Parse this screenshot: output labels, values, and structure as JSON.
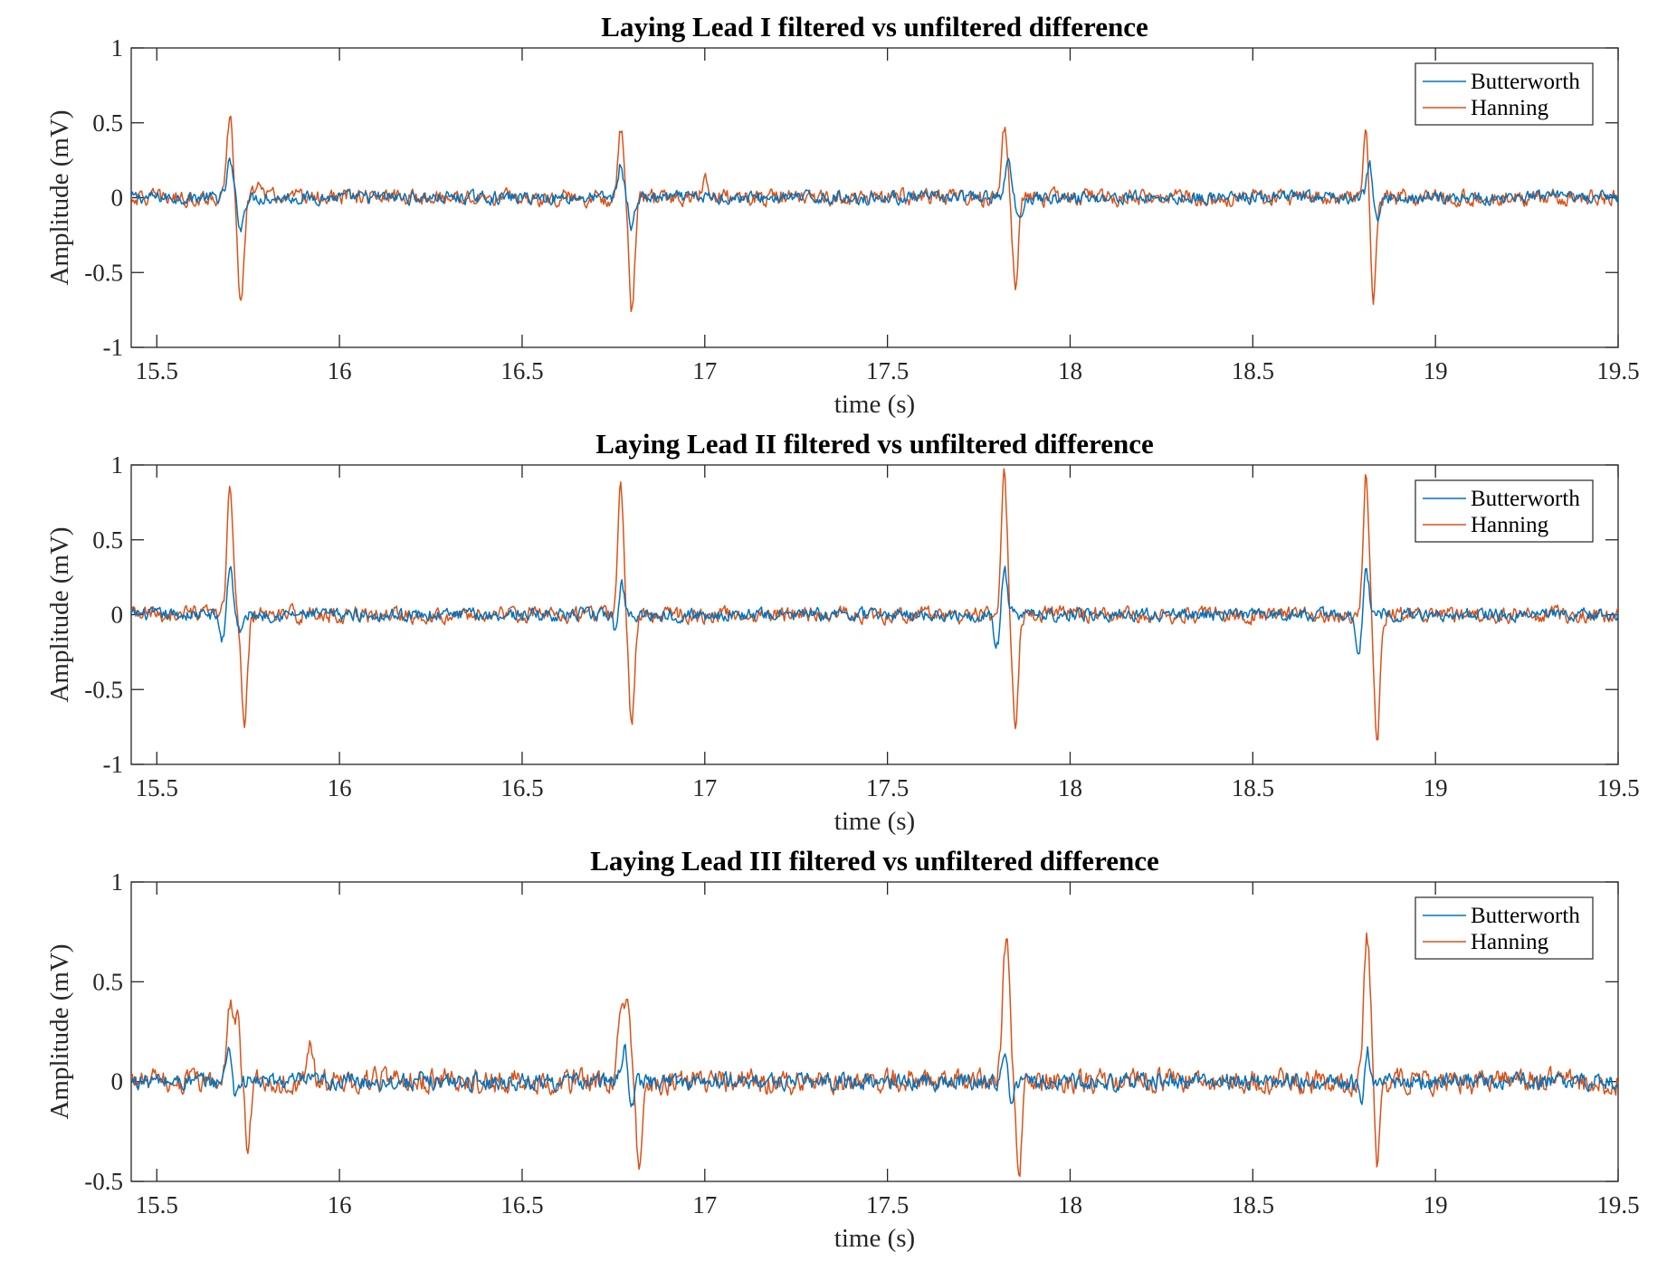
{
  "colors": {
    "butterworth": "#0072BD",
    "hanning": "#D95319",
    "axis": "#262626"
  },
  "chart_data": [
    {
      "type": "line",
      "title": "Laying Lead I filtered vs unfiltered difference",
      "xlabel": "time (s)",
      "ylabel": "Amplitude (mV)",
      "xlim": [
        15.43,
        19.5
      ],
      "ylim": [
        -1,
        1
      ],
      "xticks": [
        15.5,
        16,
        16.5,
        17,
        17.5,
        18,
        18.5,
        19,
        19.5
      ],
      "xtick_labels": [
        "15.5",
        "16",
        "16.5",
        "17",
        "17.5",
        "18",
        "18.5",
        "19",
        "19.5"
      ],
      "yticks": [
        -1,
        -0.5,
        0,
        0.5,
        1
      ],
      "ytick_labels": [
        "-1",
        "-0.5",
        "0",
        "0.5",
        "1"
      ],
      "grid": false,
      "legend_position": "top-right",
      "noise_amplitude": {
        "butterworth": 0.035,
        "hanning": 0.045
      },
      "series": [
        {
          "name": "Butterworth",
          "color": "#0072BD",
          "peaks": [
            {
              "t": 15.7,
              "v": 0.24
            },
            {
              "t": 15.73,
              "v": -0.2
            },
            {
              "t": 16.77,
              "v": 0.22
            },
            {
              "t": 16.8,
              "v": -0.2
            },
            {
              "t": 17.83,
              "v": 0.24
            },
            {
              "t": 17.86,
              "v": -0.15
            },
            {
              "t": 18.82,
              "v": 0.22
            },
            {
              "t": 18.84,
              "v": -0.18
            }
          ]
        },
        {
          "name": "Hanning",
          "color": "#D95319",
          "peaks": [
            {
              "t": 15.7,
              "v": 0.54
            },
            {
              "t": 15.73,
              "v": -0.73
            },
            {
              "t": 15.78,
              "v": 0.15
            },
            {
              "t": 16.77,
              "v": 0.46
            },
            {
              "t": 16.8,
              "v": -0.77
            },
            {
              "t": 17.0,
              "v": 0.15
            },
            {
              "t": 17.82,
              "v": 0.46
            },
            {
              "t": 17.85,
              "v": -0.58
            },
            {
              "t": 18.81,
              "v": 0.46
            },
            {
              "t": 18.83,
              "v": -0.68
            }
          ]
        }
      ]
    },
    {
      "type": "line",
      "title": "Laying Lead II filtered vs unfiltered difference",
      "xlabel": "time (s)",
      "ylabel": "Amplitude (mV)",
      "xlim": [
        15.43,
        19.5
      ],
      "ylim": [
        -1,
        1
      ],
      "xticks": [
        15.5,
        16,
        16.5,
        17,
        17.5,
        18,
        18.5,
        19,
        19.5
      ],
      "xtick_labels": [
        "15.5",
        "16",
        "16.5",
        "17",
        "17.5",
        "18",
        "18.5",
        "19",
        "19.5"
      ],
      "yticks": [
        -1,
        -0.5,
        0,
        0.5,
        1
      ],
      "ytick_labels": [
        "-1",
        "-0.5",
        "0",
        "0.5",
        "1"
      ],
      "grid": false,
      "legend_position": "top-right",
      "noise_amplitude": {
        "butterworth": 0.035,
        "hanning": 0.045
      },
      "series": [
        {
          "name": "Butterworth",
          "color": "#0072BD",
          "peaks": [
            {
              "t": 15.7,
              "v": 0.33
            },
            {
              "t": 15.68,
              "v": -0.18
            },
            {
              "t": 15.73,
              "v": -0.12
            },
            {
              "t": 16.77,
              "v": 0.28
            },
            {
              "t": 16.76,
              "v": -0.18
            },
            {
              "t": 17.82,
              "v": 0.3
            },
            {
              "t": 17.8,
              "v": -0.22
            },
            {
              "t": 18.81,
              "v": 0.3
            },
            {
              "t": 18.79,
              "v": -0.25
            }
          ]
        },
        {
          "name": "Hanning",
          "color": "#D95319",
          "peaks": [
            {
              "t": 15.7,
              "v": 0.88
            },
            {
              "t": 15.74,
              "v": -0.75
            },
            {
              "t": 16.77,
              "v": 0.85
            },
            {
              "t": 16.8,
              "v": -0.72
            },
            {
              "t": 17.82,
              "v": 0.92
            },
            {
              "t": 17.85,
              "v": -0.75
            },
            {
              "t": 18.81,
              "v": 0.94
            },
            {
              "t": 18.84,
              "v": -0.83
            }
          ]
        }
      ]
    },
    {
      "type": "line",
      "title": "Laying Lead III filtered vs unfiltered difference",
      "xlabel": "time (s)",
      "ylabel": "Amplitude (mV)",
      "xlim": [
        15.43,
        19.5
      ],
      "ylim": [
        -0.5,
        1
      ],
      "xticks": [
        15.5,
        16,
        16.5,
        17,
        17.5,
        18,
        18.5,
        19,
        19.5
      ],
      "xtick_labels": [
        "15.5",
        "16",
        "16.5",
        "17",
        "17.5",
        "18",
        "18.5",
        "19",
        "19.5"
      ],
      "yticks": [
        -0.5,
        0,
        0.5,
        1
      ],
      "ytick_labels": [
        "-0.5",
        "0",
        "0.5",
        "1"
      ],
      "grid": false,
      "legend_position": "top-right",
      "noise_amplitude": {
        "butterworth": 0.035,
        "hanning": 0.05
      },
      "series": [
        {
          "name": "Butterworth",
          "color": "#0072BD",
          "peaks": [
            {
              "t": 15.7,
              "v": 0.23
            },
            {
              "t": 15.71,
              "v": -0.12
            },
            {
              "t": 16.78,
              "v": 0.18
            },
            {
              "t": 16.8,
              "v": -0.1
            },
            {
              "t": 17.82,
              "v": 0.15
            },
            {
              "t": 17.84,
              "v": -0.1
            },
            {
              "t": 18.81,
              "v": 0.22
            },
            {
              "t": 18.8,
              "v": -0.16
            }
          ]
        },
        {
          "name": "Hanning",
          "color": "#D95319",
          "peaks": [
            {
              "t": 15.7,
              "v": 0.39
            },
            {
              "t": 15.72,
              "v": 0.33
            },
            {
              "t": 15.75,
              "v": -0.32
            },
            {
              "t": 15.92,
              "v": 0.2
            },
            {
              "t": 16.77,
              "v": 0.41
            },
            {
              "t": 16.79,
              "v": 0.39
            },
            {
              "t": 16.82,
              "v": -0.4
            },
            {
              "t": 17.82,
              "v": 0.45
            },
            {
              "t": 17.83,
              "v": 0.42
            },
            {
              "t": 17.86,
              "v": -0.44
            },
            {
              "t": 18.81,
              "v": 0.54
            },
            {
              "t": 18.82,
              "v": 0.35
            },
            {
              "t": 18.84,
              "v": -0.42
            }
          ]
        }
      ]
    }
  ]
}
